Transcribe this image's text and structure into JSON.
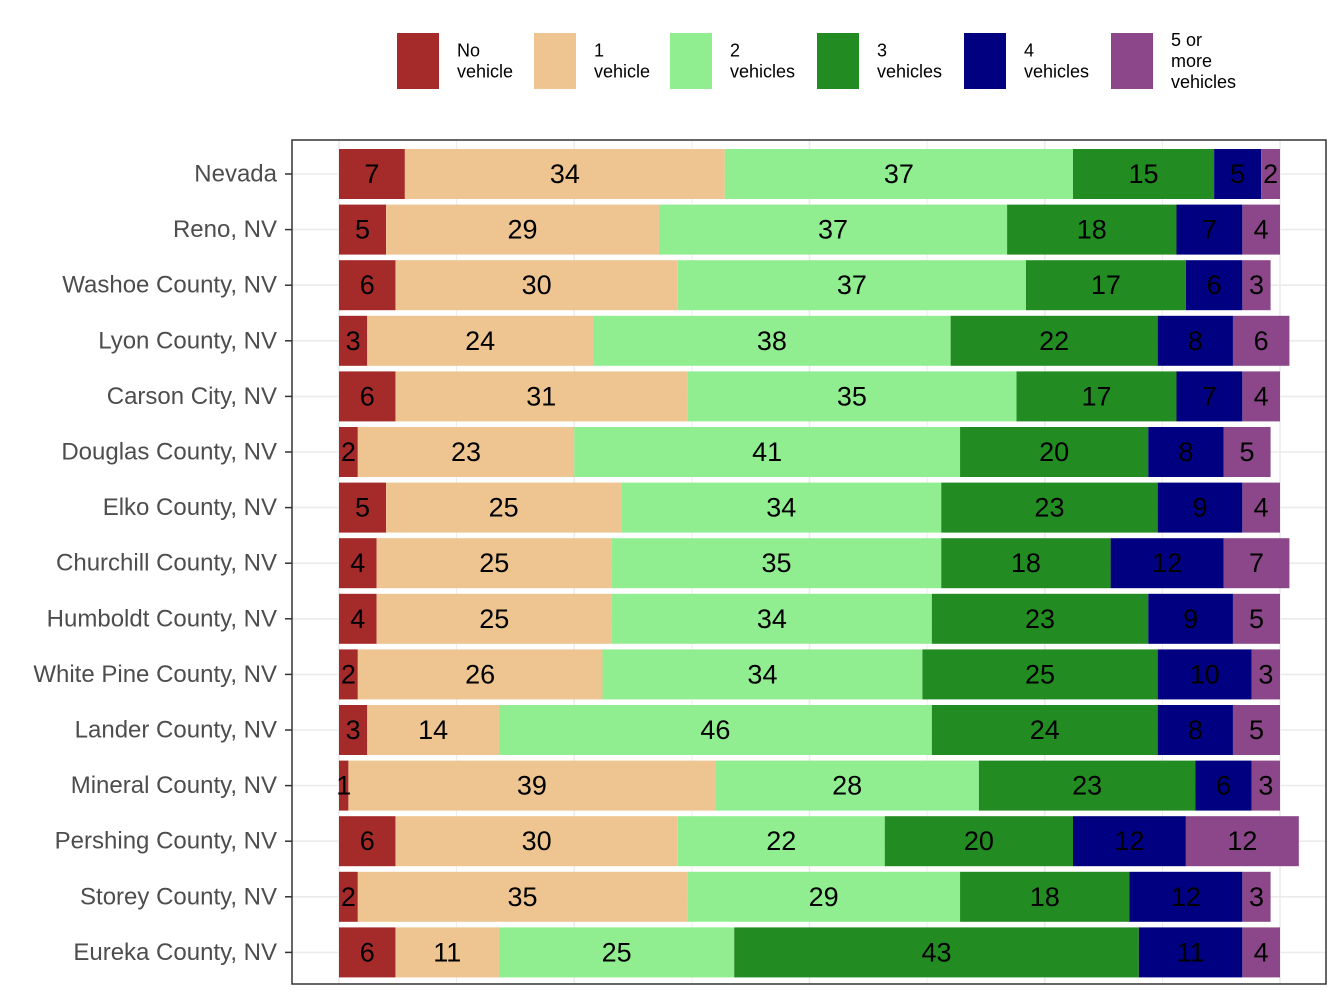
{
  "chart_data": {
    "type": "bar",
    "orientation": "horizontal",
    "stacked": true,
    "title": "",
    "xlabel": "",
    "ylabel": "",
    "xlim": [
      0,
      100
    ],
    "grid": true,
    "legend_position": "top",
    "categories": [
      "Nevada",
      "Reno, NV",
      "Washoe County, NV",
      "Lyon County, NV",
      "Carson City, NV",
      "Douglas County, NV",
      "Elko County, NV",
      "Churchill County, NV",
      "Humboldt County, NV",
      "White Pine County, NV",
      "Lander County, NV",
      "Mineral County, NV",
      "Pershing County, NV",
      "Storey County, NV",
      "Eureka County, NV"
    ],
    "series": [
      {
        "name": "No vehicle",
        "legend_lines": [
          "No",
          "vehicle"
        ],
        "color": "#a52a2a",
        "values": [
          7,
          5,
          6,
          3,
          6,
          2,
          5,
          4,
          4,
          2,
          3,
          1,
          6,
          2,
          6
        ]
      },
      {
        "name": "1 vehicle",
        "legend_lines": [
          "1",
          "vehicle"
        ],
        "color": "#eec591",
        "values": [
          34,
          29,
          30,
          24,
          31,
          23,
          25,
          25,
          25,
          26,
          14,
          39,
          30,
          35,
          11
        ]
      },
      {
        "name": "2 vehicles",
        "legend_lines": [
          "2",
          "vehicles"
        ],
        "color": "#90ee90",
        "values": [
          37,
          37,
          37,
          38,
          35,
          41,
          34,
          35,
          34,
          34,
          46,
          28,
          22,
          29,
          25
        ]
      },
      {
        "name": "3 vehicles",
        "legend_lines": [
          "3",
          "vehicles"
        ],
        "color": "#228b22",
        "values": [
          15,
          18,
          17,
          22,
          17,
          20,
          23,
          18,
          23,
          25,
          24,
          23,
          20,
          18,
          43
        ]
      },
      {
        "name": "4 vehicles",
        "legend_lines": [
          "4",
          "vehicles"
        ],
        "color": "#000080",
        "values": [
          5,
          7,
          6,
          8,
          7,
          8,
          9,
          12,
          9,
          10,
          8,
          6,
          12,
          12,
          11
        ]
      },
      {
        "name": "5 or more vehicles",
        "legend_lines": [
          "5 or",
          "more",
          "vehicles"
        ],
        "color": "#8b4789",
        "values": [
          2,
          4,
          3,
          6,
          4,
          5,
          4,
          7,
          5,
          3,
          5,
          3,
          12,
          3,
          4
        ]
      }
    ]
  }
}
